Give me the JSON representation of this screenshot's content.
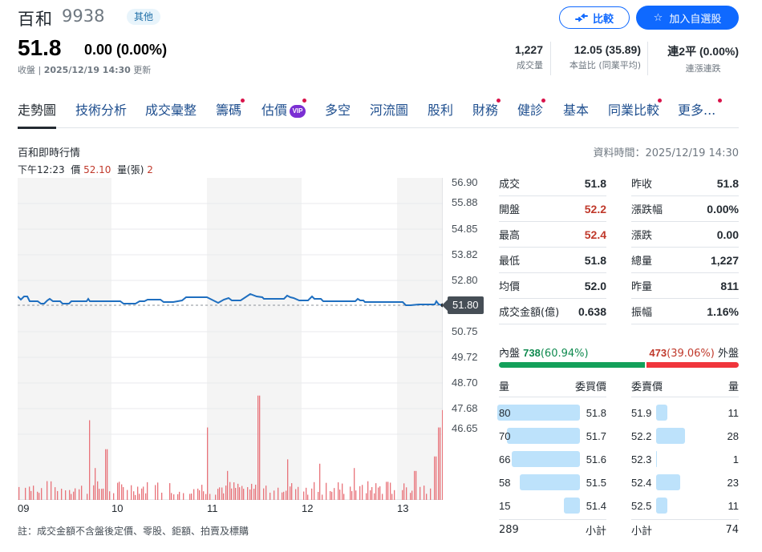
{
  "header": {
    "name": "百和",
    "code": "9938",
    "tag": "其他",
    "price": "51.8",
    "change": "0.00 (0.00%)",
    "update_prefix": "收盤 | ",
    "update_time": "2025/12/19 14:30",
    "update_suffix": " 更新",
    "compare_label": "比較",
    "watchlist_label": "加入自選股",
    "stats": [
      {
        "value": "1,227",
        "label": "成交量"
      },
      {
        "value": "12.05 (35.89)",
        "label": "本益比 (同業平均)"
      },
      {
        "value": "連2平 (0.00%)",
        "label": "連漲連跌"
      }
    ]
  },
  "tabs": [
    {
      "label": "走勢圖",
      "active": true,
      "dot": false
    },
    {
      "label": "技術分析",
      "dot": false
    },
    {
      "label": "成交彙整",
      "dot": false
    },
    {
      "label": "籌碼",
      "dot": true
    },
    {
      "label": "估價",
      "dot": true,
      "vip": "VIP"
    },
    {
      "label": "多空",
      "dot": false
    },
    {
      "label": "河流圖",
      "dot": false
    },
    {
      "label": "股利",
      "dot": false
    },
    {
      "label": "財務",
      "dot": true
    },
    {
      "label": "健診",
      "dot": true
    },
    {
      "label": "基本",
      "dot": false
    },
    {
      "label": "同業比較",
      "dot": true
    },
    {
      "label": "更多...",
      "dot": true
    }
  ],
  "section": {
    "title": "百和即時行情",
    "data_time": "資料時間：2025/12/19 14:30",
    "hover": {
      "time": "下午12:23",
      "price_label": "價",
      "price": "52.10",
      "vol_label": "量(張)",
      "vol": "2"
    }
  },
  "chart_data": {
    "type": "line",
    "title": "百和即時行情",
    "xlabel": "",
    "ylabel": "",
    "x_ticks": [
      "09",
      "10",
      "11",
      "12",
      "13"
    ],
    "y_ticks": [
      "56.90",
      "55.88",
      "54.85",
      "53.82",
      "52.80",
      "51.80",
      "50.75",
      "49.72",
      "48.70",
      "47.68",
      "46.65"
    ],
    "ylim": [
      46.65,
      56.9
    ],
    "reference_price": 51.8,
    "last_price_label": "51.80",
    "series": [
      {
        "name": "price",
        "color": "#1f6fc0",
        "x": [
          "09:00",
          "09:05",
          "09:10",
          "09:20",
          "09:30",
          "09:40",
          "09:50",
          "10:00",
          "10:10",
          "10:20",
          "10:30",
          "10:40",
          "10:50",
          "11:00",
          "11:10",
          "11:20",
          "11:30",
          "11:40",
          "11:50",
          "12:00",
          "12:10",
          "12:20",
          "12:30",
          "12:40",
          "12:50",
          "13:00",
          "13:10",
          "13:20",
          "13:25",
          "13:30"
        ],
        "values": [
          52.0,
          52.1,
          51.9,
          51.9,
          51.8,
          51.9,
          51.9,
          51.8,
          51.9,
          52.0,
          52.0,
          52.1,
          52.1,
          52.0,
          52.0,
          52.2,
          52.1,
          52.1,
          52.0,
          52.1,
          52.0,
          52.0,
          51.9,
          51.9,
          51.9,
          51.8,
          51.8,
          51.9,
          51.8,
          51.8
        ]
      },
      {
        "name": "volume",
        "color": "#e8737a",
        "type": "bar",
        "note": "relative heights"
      }
    ]
  },
  "chart": {
    "note": "註：成交金額不含盤後定價、零股、鉅額、拍賣及標購"
  },
  "quote": {
    "left": [
      {
        "k": "成交",
        "v": "51.8",
        "up": false
      },
      {
        "k": "開盤",
        "v": "52.2",
        "up": true
      },
      {
        "k": "最高",
        "v": "52.4",
        "up": true
      },
      {
        "k": "最低",
        "v": "51.8",
        "up": false
      },
      {
        "k": "均價",
        "v": "52.0",
        "up": false
      },
      {
        "k": "成交金額(億)",
        "v": "0.638",
        "up": false
      }
    ],
    "right": [
      {
        "k": "昨收",
        "v": "51.8"
      },
      {
        "k": "漲跌幅",
        "v": "0.00%"
      },
      {
        "k": "漲跌",
        "v": "0.00"
      },
      {
        "k": "總量",
        "v": "1,227"
      },
      {
        "k": "昨量",
        "v": "811"
      },
      {
        "k": "振幅",
        "v": "1.16%"
      }
    ]
  },
  "inout": {
    "in_label": "內盤",
    "in_value": "738",
    "in_pct": "(60.94%)",
    "out_value": "473",
    "out_pct": "(39.06%)",
    "out_label": "外盤",
    "in_ratio": 60.94
  },
  "orderbook": {
    "bid_headers": [
      "量",
      "委買價"
    ],
    "ask_headers": [
      "委賣價",
      "量"
    ],
    "bids": [
      {
        "qty": "80",
        "price": "51.8",
        "pct": 100
      },
      {
        "qty": "70",
        "price": "51.7",
        "pct": 88
      },
      {
        "qty": "66",
        "price": "51.6",
        "pct": 83
      },
      {
        "qty": "58",
        "price": "51.5",
        "pct": 73
      },
      {
        "qty": "15",
        "price": "51.4",
        "pct": 19
      }
    ],
    "asks": [
      {
        "price": "51.9",
        "qty": "11",
        "pct": 14
      },
      {
        "price": "52.2",
        "qty": "28",
        "pct": 35
      },
      {
        "price": "52.3",
        "qty": "1",
        "pct": 1
      },
      {
        "price": "52.4",
        "qty": "23",
        "pct": 29
      },
      {
        "price": "52.5",
        "qty": "11",
        "pct": 14
      }
    ],
    "bid_total": "289",
    "subtotal_label": "小計",
    "ask_total": "74"
  }
}
